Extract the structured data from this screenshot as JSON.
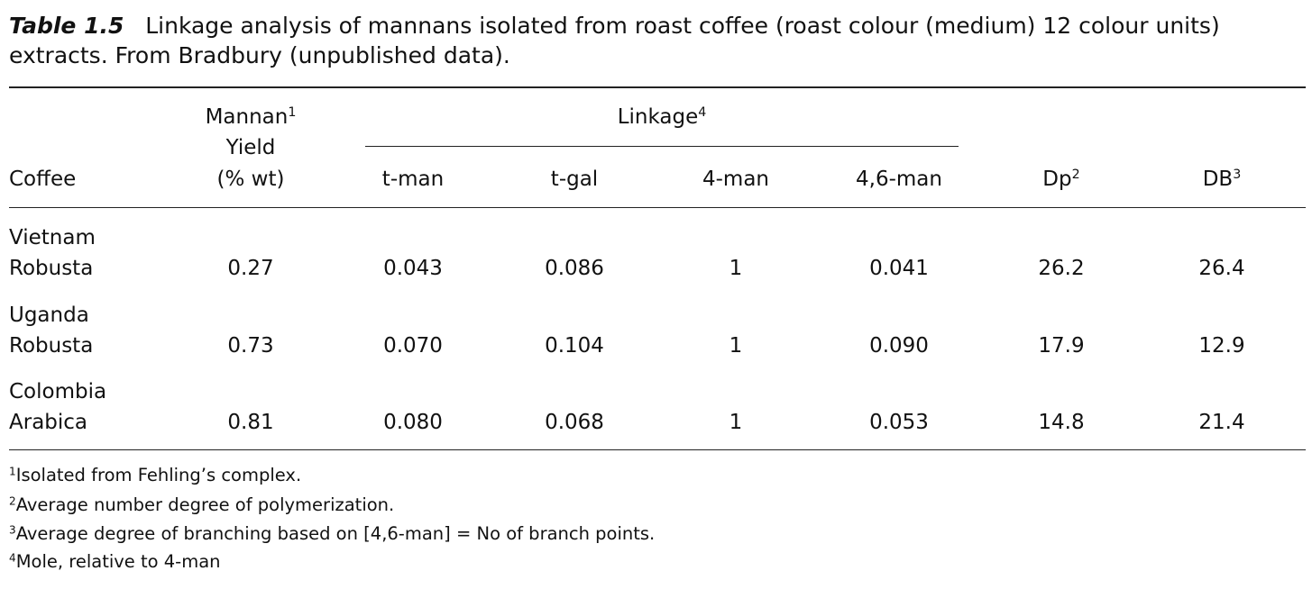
{
  "caption": {
    "label": "Table 1.5",
    "text": "Linkage analysis of mannans isolated from roast coffee (roast colour (medium) 12 colour units) extracts. From Bradbury (unpublished data)."
  },
  "header": {
    "coffee": "Coffee",
    "mannan": {
      "text": "Mannan",
      "sup": "1",
      "line2": "Yield",
      "line3": "(% wt)"
    },
    "linkage": {
      "text": "Linkage",
      "sup": "4"
    },
    "linkage_columns": [
      "t-man",
      "t-gal",
      "4-man",
      "4,6-man"
    ],
    "dp": {
      "text": "Dp",
      "sup": "2"
    },
    "db": {
      "text": "DB",
      "sup": "3"
    }
  },
  "rows": [
    {
      "coffee": [
        "Vietnam",
        "Robusta"
      ],
      "values": [
        "0.27",
        "0.043",
        "0.086",
        "1",
        "0.041",
        "26.2",
        "26.4"
      ]
    },
    {
      "coffee": [
        "Uganda",
        "Robusta"
      ],
      "values": [
        "0.73",
        "0.070",
        "0.104",
        "1",
        "0.090",
        "17.9",
        "12.9"
      ]
    },
    {
      "coffee": [
        "Colombia",
        "Arabica"
      ],
      "values": [
        "0.81",
        "0.080",
        "0.068",
        "1",
        "0.053",
        "14.8",
        "21.4"
      ]
    }
  ],
  "footnotes": [
    {
      "mark": "1",
      "text": "Isolated from Fehling’s complex."
    },
    {
      "mark": "2",
      "text": "Average number degree of polymerization."
    },
    {
      "mark": "3",
      "text": "Average degree of branching based on [4,6-man] = No of branch points."
    },
    {
      "mark": "4",
      "text": "Mole, relative to 4-man"
    }
  ]
}
